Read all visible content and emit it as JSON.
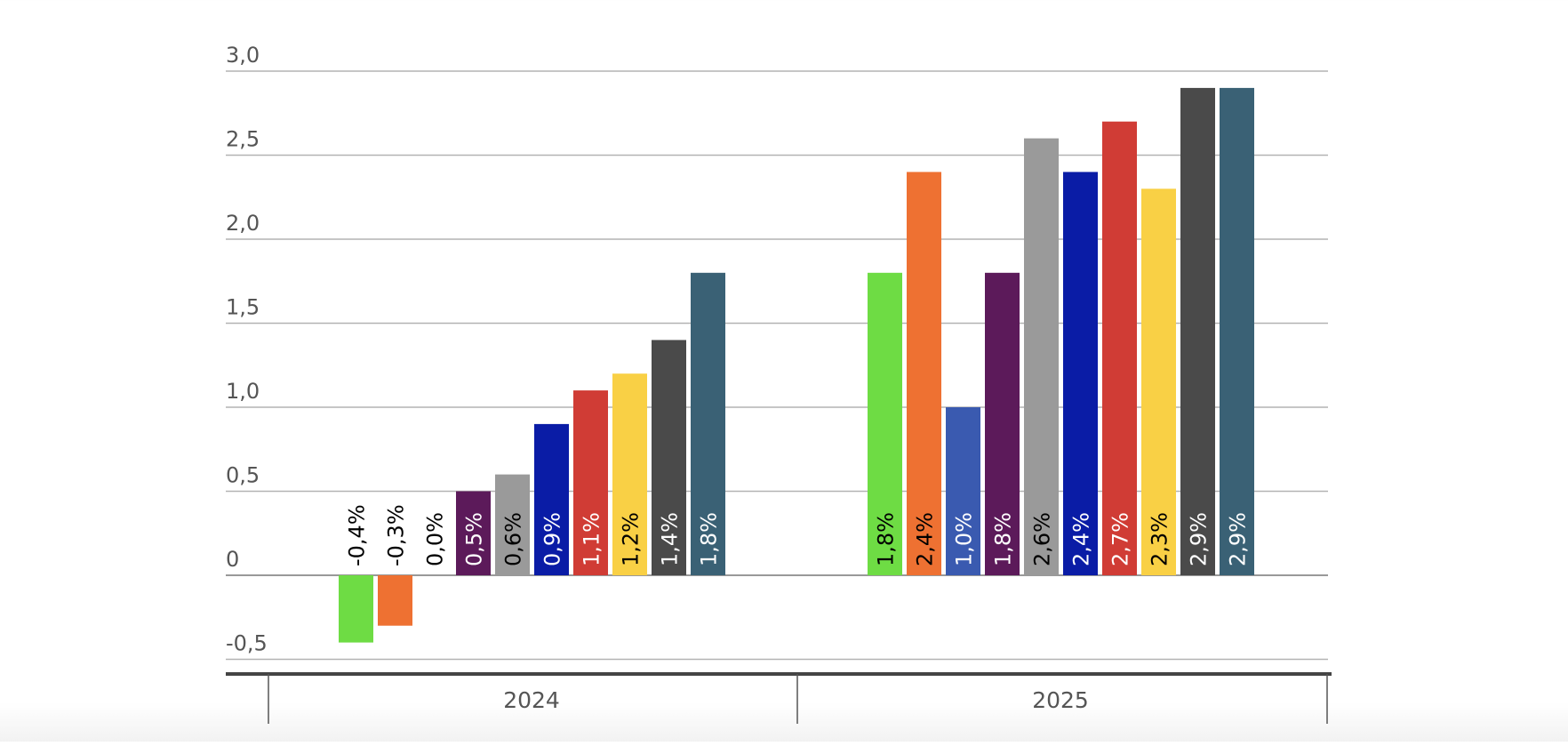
{
  "chart_data": {
    "type": "bar",
    "title": "",
    "xlabel": "",
    "ylabel": "",
    "ylim": [
      -0.5,
      3.0
    ],
    "y_ticks": [
      "-0,5",
      "0",
      "0,5",
      "1,0",
      "1,5",
      "2,0",
      "2,5",
      "3,0"
    ],
    "y_tick_values": [
      -0.5,
      0,
      0.5,
      1.0,
      1.5,
      2.0,
      2.5,
      3.0
    ],
    "grid": true,
    "legend": "none",
    "categories": [
      "2024",
      "2025"
    ],
    "groups": [
      {
        "category": "2024",
        "bars": [
          {
            "value": -0.4,
            "label": "-0,4%",
            "color": "#6edc44",
            "label_color": "#000000"
          },
          {
            "value": -0.3,
            "label": "-0,3%",
            "color": "#ee7132",
            "label_color": "#000000"
          },
          {
            "value": 0.0,
            "label": "0,0%",
            "color": "#3a5ab0",
            "label_color": "#000000"
          },
          {
            "value": 0.5,
            "label": "0,5%",
            "color": "#5c1a5a",
            "label_color": "#ffffff"
          },
          {
            "value": 0.6,
            "label": "0,6%",
            "color": "#9a9a9a",
            "label_color": "#000000"
          },
          {
            "value": 0.9,
            "label": "0,9%",
            "color": "#0a1ca6",
            "label_color": "#ffffff"
          },
          {
            "value": 1.1,
            "label": "1,1%",
            "color": "#d03c35",
            "label_color": "#ffffff"
          },
          {
            "value": 1.2,
            "label": "1,2%",
            "color": "#f9d045",
            "label_color": "#000000"
          },
          {
            "value": 1.4,
            "label": "1,4%",
            "color": "#4a4a4a",
            "label_color": "#ffffff"
          },
          {
            "value": 1.8,
            "label": "1,8%",
            "color": "#3a6175",
            "label_color": "#ffffff"
          }
        ]
      },
      {
        "category": "2025",
        "bars": [
          {
            "value": 1.8,
            "label": "1,8%",
            "color": "#6edc44",
            "label_color": "#000000"
          },
          {
            "value": 2.4,
            "label": "2,4%",
            "color": "#ee7132",
            "label_color": "#000000"
          },
          {
            "value": 1.0,
            "label": "1,0%",
            "color": "#3a5ab0",
            "label_color": "#ffffff"
          },
          {
            "value": 1.8,
            "label": "1,8%",
            "color": "#5c1a5a",
            "label_color": "#ffffff"
          },
          {
            "value": 2.6,
            "label": "2,6%",
            "color": "#9a9a9a",
            "label_color": "#000000"
          },
          {
            "value": 2.4,
            "label": "2,4%",
            "color": "#0a1ca6",
            "label_color": "#ffffff"
          },
          {
            "value": 2.7,
            "label": "2,7%",
            "color": "#d03c35",
            "label_color": "#ffffff"
          },
          {
            "value": 2.3,
            "label": "2,3%",
            "color": "#f9d045",
            "label_color": "#000000"
          },
          {
            "value": 2.9,
            "label": "2,9%",
            "color": "#4a4a4a",
            "label_color": "#ffffff"
          },
          {
            "value": 2.9,
            "label": "2,9%",
            "color": "#3a6175",
            "label_color": "#ffffff"
          }
        ]
      }
    ]
  }
}
